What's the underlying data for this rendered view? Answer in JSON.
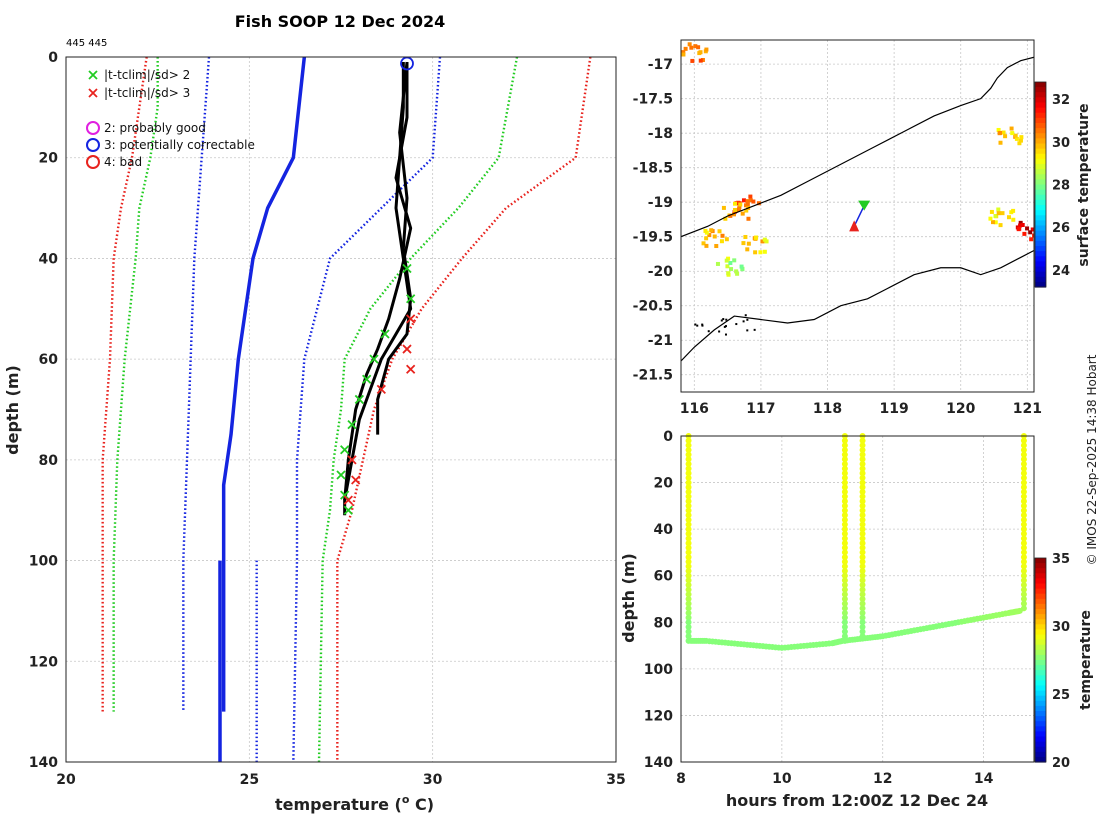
{
  "title": "Fish SOOP 12 Dec 2024",
  "ids_label": "445 445",
  "credit": "© IMOS 22-Sep-2025 14:38 Hobart",
  "colors": {
    "red": "#e8231e",
    "green": "#22cc22",
    "blue": "#1424e0",
    "black": "#000000",
    "magenta": "#e020e0",
    "land": "#ffffff"
  },
  "legend": {
    "cross_entries": [
      {
        "label": "|t-tclim|/sd> 2",
        "color": "#22cc22"
      },
      {
        "label": "|t-tclim|/sd> 3",
        "color": "#e8231e"
      }
    ],
    "circle_entries": [
      {
        "label": "2: probably good",
        "color": "#e020e0"
      },
      {
        "label": "3: potentially correctable",
        "color": "#1424e0"
      },
      {
        "label": "4: bad",
        "color": "#e8231e"
      }
    ]
  },
  "chart_data": [
    {
      "id": "profile",
      "type": "line",
      "xlabel": "temperature (",
      "xlabel_sup": "o",
      "xlabel_end": " C)",
      "ylabel": "depth (m)",
      "xlim": [
        20,
        35
      ],
      "ylim": [
        0,
        140
      ],
      "xticks": [
        "20",
        "25",
        "30",
        "35"
      ],
      "yticks": [
        "0",
        "20",
        "40",
        "60",
        "80",
        "100",
        "120",
        "140"
      ],
      "series": [
        {
          "name": "climatology mean",
          "style": "solid",
          "color": "#1424e0",
          "depth": [
            0,
            20,
            30,
            40,
            60,
            75,
            85,
            100,
            130
          ],
          "temp": [
            26.5,
            26.2,
            25.5,
            25.1,
            24.7,
            24.5,
            24.3,
            24.3,
            24.3
          ]
        },
        {
          "name": "climatology mean (deep)",
          "style": "solid",
          "color": "#1424e0",
          "depth": [
            100,
            140
          ],
          "temp": [
            24.2,
            24.2
          ]
        },
        {
          "name": "clim -1sd",
          "style": "dotted",
          "color": "#1424e0",
          "depth": [
            0,
            20,
            40,
            60,
            80,
            100,
            130
          ],
          "temp": [
            23.9,
            23.7,
            23.5,
            23.4,
            23.3,
            23.2,
            23.2
          ]
        },
        {
          "name": "clim +1sd",
          "style": "dotted",
          "color": "#1424e0",
          "depth": [
            0,
            20,
            30,
            40,
            60,
            80,
            100,
            140
          ],
          "temp": [
            30.2,
            30.0,
            28.6,
            27.2,
            26.5,
            26.3,
            26.3,
            26.2
          ]
        },
        {
          "name": "clim -1sd (lower)",
          "style": "dotted",
          "color": "#1424e0",
          "depth": [
            100,
            140
          ],
          "temp": [
            25.2,
            25.2
          ]
        },
        {
          "name": "clim -2sd",
          "style": "dotted",
          "color": "#22cc22",
          "depth": [
            0,
            10,
            20,
            30,
            40,
            60,
            70,
            80,
            100,
            130
          ],
          "temp": [
            22.5,
            22.5,
            22.3,
            22.0,
            21.9,
            21.6,
            21.5,
            21.4,
            21.3,
            21.3
          ]
        },
        {
          "name": "clim +2sd",
          "style": "dotted",
          "color": "#22cc22",
          "depth": [
            0,
            20,
            30,
            40,
            50,
            60,
            70,
            80,
            90,
            100,
            140
          ],
          "temp": [
            32.3,
            31.8,
            30.7,
            29.4,
            28.3,
            27.6,
            27.5,
            27.3,
            27.2,
            27.0,
            26.9
          ]
        },
        {
          "name": "clim -3sd",
          "style": "dotted",
          "color": "#e8231e",
          "depth": [
            0,
            20,
            30,
            40,
            60,
            70,
            80,
            100,
            130
          ],
          "temp": [
            22.2,
            21.8,
            21.5,
            21.3,
            21.2,
            21.1,
            21.0,
            21.0,
            21.0
          ]
        },
        {
          "name": "clim +3sd",
          "style": "dotted",
          "color": "#e8231e",
          "depth": [
            0,
            20,
            30,
            40,
            50,
            60,
            70,
            80,
            90,
            100,
            140
          ],
          "temp": [
            34.3,
            33.9,
            32.0,
            30.8,
            29.7,
            28.9,
            28.4,
            28.1,
            27.8,
            27.4,
            27.4
          ]
        },
        {
          "name": "profile 1",
          "style": "solid",
          "color": "#000000",
          "depth": [
            1,
            10,
            20,
            30,
            40,
            50,
            55,
            60,
            66,
            72,
            80,
            88,
            91
          ],
          "temp": [
            29.2,
            29.2,
            29.1,
            29.0,
            29.2,
            29.4,
            29.0,
            28.6,
            28.3,
            28.0,
            27.8,
            27.6,
            27.6
          ]
        },
        {
          "name": "profile 2",
          "style": "solid",
          "color": "#000000",
          "depth": [
            1,
            12,
            24,
            34,
            44,
            52,
            58,
            63,
            70,
            80,
            88
          ],
          "temp": [
            29.3,
            29.3,
            29.0,
            29.4,
            29.1,
            28.8,
            28.5,
            28.2,
            27.9,
            27.7,
            27.6
          ]
        },
        {
          "name": "profile 3",
          "style": "solid",
          "color": "#000000",
          "depth": [
            1,
            15,
            28,
            38,
            48,
            55,
            60,
            68,
            75
          ],
          "temp": [
            29.3,
            29.1,
            29.3,
            29.2,
            29.4,
            29.3,
            28.8,
            28.5,
            28.5
          ]
        }
      ],
      "green_flags": {
        "depth": [
          42,
          48,
          55,
          60,
          64,
          68,
          73,
          78,
          83,
          87,
          90
        ],
        "temp": [
          29.3,
          29.4,
          28.7,
          28.4,
          28.2,
          28.0,
          27.8,
          27.6,
          27.5,
          27.6,
          27.7
        ]
      },
      "red_flags": {
        "depth": [
          52,
          58,
          62,
          66,
          80,
          84,
          88
        ],
        "temp": [
          29.4,
          29.3,
          29.4,
          28.6,
          27.8,
          27.9,
          27.7
        ]
      },
      "circle_flags": {
        "depth": [
          0.5
        ],
        "temp": [
          29.3
        ],
        "color": "#1424e0"
      }
    },
    {
      "id": "map",
      "type": "heatmap",
      "xlim": [
        115.8,
        121.1
      ],
      "ylim": [
        -21.75,
        -16.65
      ],
      "xticks": [
        "116",
        "117",
        "118",
        "119",
        "120",
        "121"
      ],
      "yticks": [
        "-17",
        "-17.5",
        "-18",
        "-18.5",
        "-19",
        "-19.5",
        "-20",
        "-20.5",
        "-21",
        "-21.5"
      ],
      "colorbar_label": "surface temperature",
      "colorbar_ticks": [
        "24",
        "26",
        "28",
        "30",
        "32"
      ],
      "colorbar_range": [
        23.2,
        32.8
      ],
      "coast_upper": {
        "lon": [
          115.8,
          116.2,
          116.5,
          116.9,
          117.3,
          117.7,
          118.2,
          118.7,
          119.2,
          119.6,
          120.0,
          120.3,
          120.45,
          120.55,
          120.7,
          120.9,
          121.1
        ],
        "lat": [
          -19.5,
          -19.35,
          -19.2,
          -19.05,
          -18.9,
          -18.7,
          -18.45,
          -18.2,
          -17.95,
          -17.75,
          -17.6,
          -17.5,
          -17.35,
          -17.2,
          -17.05,
          -16.95,
          -16.9
        ]
      },
      "coast_lower": {
        "lon": [
          115.8,
          116.0,
          116.3,
          116.6,
          117.0,
          117.4,
          117.8,
          118.2,
          118.6,
          118.9,
          119.3,
          119.7,
          120.0,
          120.3,
          120.6,
          120.9,
          121.1
        ],
        "lat": [
          -21.3,
          -21.1,
          -20.85,
          -20.65,
          -20.7,
          -20.75,
          -20.7,
          -20.5,
          -20.4,
          -20.25,
          -20.05,
          -19.95,
          -19.95,
          -20.05,
          -19.95,
          -19.8,
          -19.7
        ]
      },
      "sst_clusters": [
        {
          "lon": 116.75,
          "lat": -19.0,
          "value": 31.0
        },
        {
          "lon": 116.6,
          "lat": -19.1,
          "value": 30.0
        },
        {
          "lon": 116.9,
          "lat": -19.6,
          "value": 29.6
        },
        {
          "lon": 116.3,
          "lat": -19.5,
          "value": 29.8
        },
        {
          "lon": 116.5,
          "lat": -19.9,
          "value": 28.5
        },
        {
          "lon": 120.6,
          "lat": -19.2,
          "value": 29.5
        },
        {
          "lon": 120.7,
          "lat": -18.0,
          "value": 29.7
        },
        {
          "lon": 116.0,
          "lat": -16.8,
          "value": 30.5
        },
        {
          "lon": 121.0,
          "lat": -19.4,
          "value": 32.0
        }
      ],
      "track": {
        "lon": [
          118.55,
          118.4
        ],
        "lat": [
          -19.05,
          -19.35
        ]
      }
    },
    {
      "id": "hovmoller",
      "type": "scatter",
      "xlabel": "hours from 12:00Z 12 Dec 24",
      "ylabel": "depth (m)",
      "xlim": [
        8,
        15
      ],
      "ylim": [
        0,
        140
      ],
      "xticks": [
        "8",
        "10",
        "12",
        "14"
      ],
      "yticks": [
        "0",
        "20",
        "40",
        "60",
        "80",
        "100",
        "120",
        "140"
      ],
      "colorbar_label": "temperature",
      "colorbar_ticks": [
        "20",
        "25",
        "30",
        "35"
      ],
      "colorbar_range": [
        20,
        35
      ],
      "casts": [
        {
          "hour": 8.15,
          "max_depth": 88
        },
        {
          "hour": 11.25,
          "max_depth": 88
        },
        {
          "hour": 11.6,
          "max_depth": 87
        },
        {
          "hour": 14.8,
          "max_depth": 75
        }
      ],
      "bottom_trace": {
        "hour": [
          8.2,
          8.5,
          9.0,
          9.5,
          10.0,
          10.5,
          11.0,
          11.2,
          11.6,
          12.0,
          12.5,
          13.0,
          13.5,
          14.0,
          14.5,
          14.75
        ],
        "depth": [
          88,
          88,
          89,
          90,
          91,
          90,
          89,
          88,
          87,
          86,
          84,
          82,
          80,
          78,
          76,
          75
        ]
      }
    }
  ]
}
